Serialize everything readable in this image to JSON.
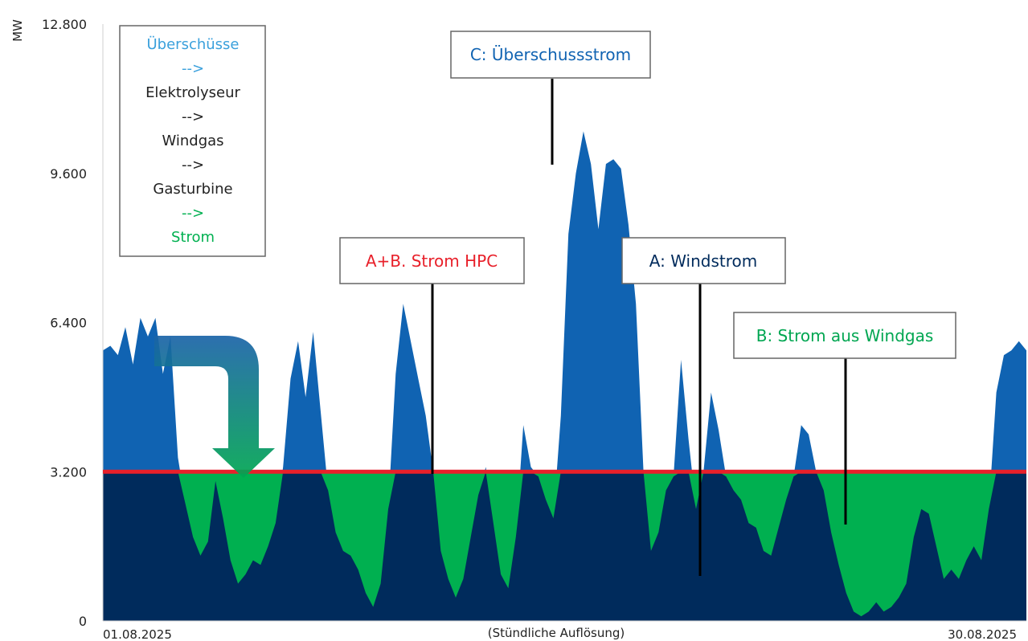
{
  "chart_data": {
    "type": "area",
    "ylabel": "MW",
    "xlabel": "(Stündliche Auflösung)",
    "x_start_label": "01.08.2025",
    "x_end_label": "30.08.2025",
    "ylim": [
      0,
      12800
    ],
    "yticks": [
      0,
      3200,
      6400,
      9600,
      12800
    ],
    "ytick_labels": [
      "0",
      "3.200",
      "6.400",
      "9.600",
      "12.800"
    ],
    "grid": false,
    "threshold": {
      "value": 3200,
      "color": "#e8202a"
    },
    "colors": {
      "wind": "#002b5c",
      "surplus": "#1063b2",
      "windgas": "#00b050",
      "arrow_top": "#1a63a8",
      "arrow_bottom": "#00a651"
    },
    "wind_profile": [
      [
        0,
        5800
      ],
      [
        1,
        5900
      ],
      [
        2,
        5700
      ],
      [
        3,
        6300
      ],
      [
        4,
        5500
      ],
      [
        5,
        6500
      ],
      [
        6,
        6100
      ],
      [
        7,
        6500
      ],
      [
        8,
        5300
      ],
      [
        9,
        6100
      ],
      [
        10,
        3500
      ],
      [
        11,
        2500
      ],
      [
        12,
        1800
      ],
      [
        13,
        1400
      ],
      [
        14,
        1700
      ],
      [
        15,
        3000
      ],
      [
        16,
        2200
      ],
      [
        17,
        1300
      ],
      [
        18,
        800
      ],
      [
        19,
        1000
      ],
      [
        20,
        1300
      ],
      [
        21,
        1200
      ],
      [
        22,
        1600
      ],
      [
        23,
        2100
      ],
      [
        24,
        3300
      ],
      [
        25,
        5200
      ],
      [
        26,
        6000
      ],
      [
        27,
        4800
      ],
      [
        28,
        6200
      ],
      [
        29,
        4500
      ],
      [
        30,
        2800
      ],
      [
        31,
        1900
      ],
      [
        32,
        1500
      ],
      [
        33,
        1400
      ],
      [
        34,
        1100
      ],
      [
        35,
        600
      ],
      [
        36,
        300
      ],
      [
        37,
        800
      ],
      [
        38,
        2400
      ],
      [
        39,
        5300
      ],
      [
        40,
        6800
      ],
      [
        41,
        6000
      ],
      [
        42,
        5200
      ],
      [
        43,
        4400
      ],
      [
        44,
        3200
      ],
      [
        45,
        1500
      ],
      [
        46,
        900
      ],
      [
        47,
        500
      ],
      [
        48,
        900
      ],
      [
        49,
        1800
      ],
      [
        50,
        2700
      ],
      [
        51,
        3300
      ],
      [
        52,
        2100
      ],
      [
        53,
        1000
      ],
      [
        54,
        700
      ],
      [
        55,
        1800
      ],
      [
        56,
        4200
      ],
      [
        57,
        3300
      ],
      [
        58,
        3100
      ],
      [
        59,
        2600
      ],
      [
        60,
        2200
      ],
      [
        61,
        4400
      ],
      [
        62,
        8300
      ],
      [
        63,
        9600
      ],
      [
        64,
        10500
      ],
      [
        65,
        9800
      ],
      [
        66,
        8400
      ],
      [
        67,
        9800
      ],
      [
        68,
        9900
      ],
      [
        69,
        9700
      ],
      [
        70,
        8500
      ],
      [
        71,
        6800
      ],
      [
        72,
        3200
      ],
      [
        73,
        1500
      ],
      [
        74,
        1900
      ],
      [
        75,
        2800
      ],
      [
        76,
        3100
      ],
      [
        77,
        5600
      ],
      [
        78,
        3900
      ],
      [
        79,
        2400
      ],
      [
        80,
        3200
      ],
      [
        81,
        4900
      ],
      [
        82,
        4100
      ],
      [
        83,
        3100
      ],
      [
        84,
        2800
      ],
      [
        85,
        2600
      ],
      [
        86,
        2100
      ],
      [
        87,
        2000
      ],
      [
        88,
        1500
      ],
      [
        89,
        1400
      ],
      [
        90,
        2000
      ],
      [
        91,
        2600
      ],
      [
        92,
        3100
      ],
      [
        93,
        4200
      ],
      [
        94,
        4000
      ],
      [
        95,
        3200
      ],
      [
        96,
        2800
      ],
      [
        97,
        1900
      ],
      [
        98,
        1200
      ],
      [
        99,
        600
      ],
      [
        100,
        200
      ],
      [
        101,
        100
      ],
      [
        102,
        200
      ],
      [
        103,
        400
      ],
      [
        104,
        200
      ],
      [
        105,
        300
      ],
      [
        106,
        500
      ],
      [
        107,
        800
      ],
      [
        108,
        1800
      ],
      [
        109,
        2400
      ],
      [
        110,
        2300
      ],
      [
        111,
        1600
      ],
      [
        112,
        900
      ],
      [
        113,
        1100
      ],
      [
        114,
        900
      ],
      [
        115,
        1300
      ],
      [
        116,
        1600
      ],
      [
        117,
        1300
      ],
      [
        118,
        2400
      ],
      [
        119,
        4900
      ],
      [
        120,
        5700
      ],
      [
        121,
        5800
      ],
      [
        122,
        6000
      ],
      [
        123,
        5800
      ]
    ],
    "boxes": [
      {
        "key": "c",
        "label": "C: Überschussstrom",
        "color": "#1063b2",
        "ref": "surplus"
      },
      {
        "key": "ab",
        "label": "A+B. Strom HPC",
        "color": "#e8202a",
        "ref": "threshold"
      },
      {
        "key": "a",
        "label": "A: Windstrom",
        "color": "#002b5c",
        "ref": "wind"
      },
      {
        "key": "b",
        "label": "B: Strom aus Windgas",
        "color": "#00a651",
        "ref": "windgas"
      }
    ],
    "legend": [
      {
        "text": "Überschüsse",
        "color": "#3aa0dc"
      },
      {
        "text": "-->",
        "color": "#3aa0dc"
      },
      {
        "text": "Elektrolyseur",
        "color": "#222222"
      },
      {
        "text": "-->",
        "color": "#222222"
      },
      {
        "text": "Windgas",
        "color": "#222222"
      },
      {
        "text": "-->",
        "color": "#222222"
      },
      {
        "text": "Gasturbine",
        "color": "#222222"
      },
      {
        "text": "-->",
        "color": "#00b050"
      },
      {
        "text": "Strom",
        "color": "#00b050"
      }
    ]
  }
}
